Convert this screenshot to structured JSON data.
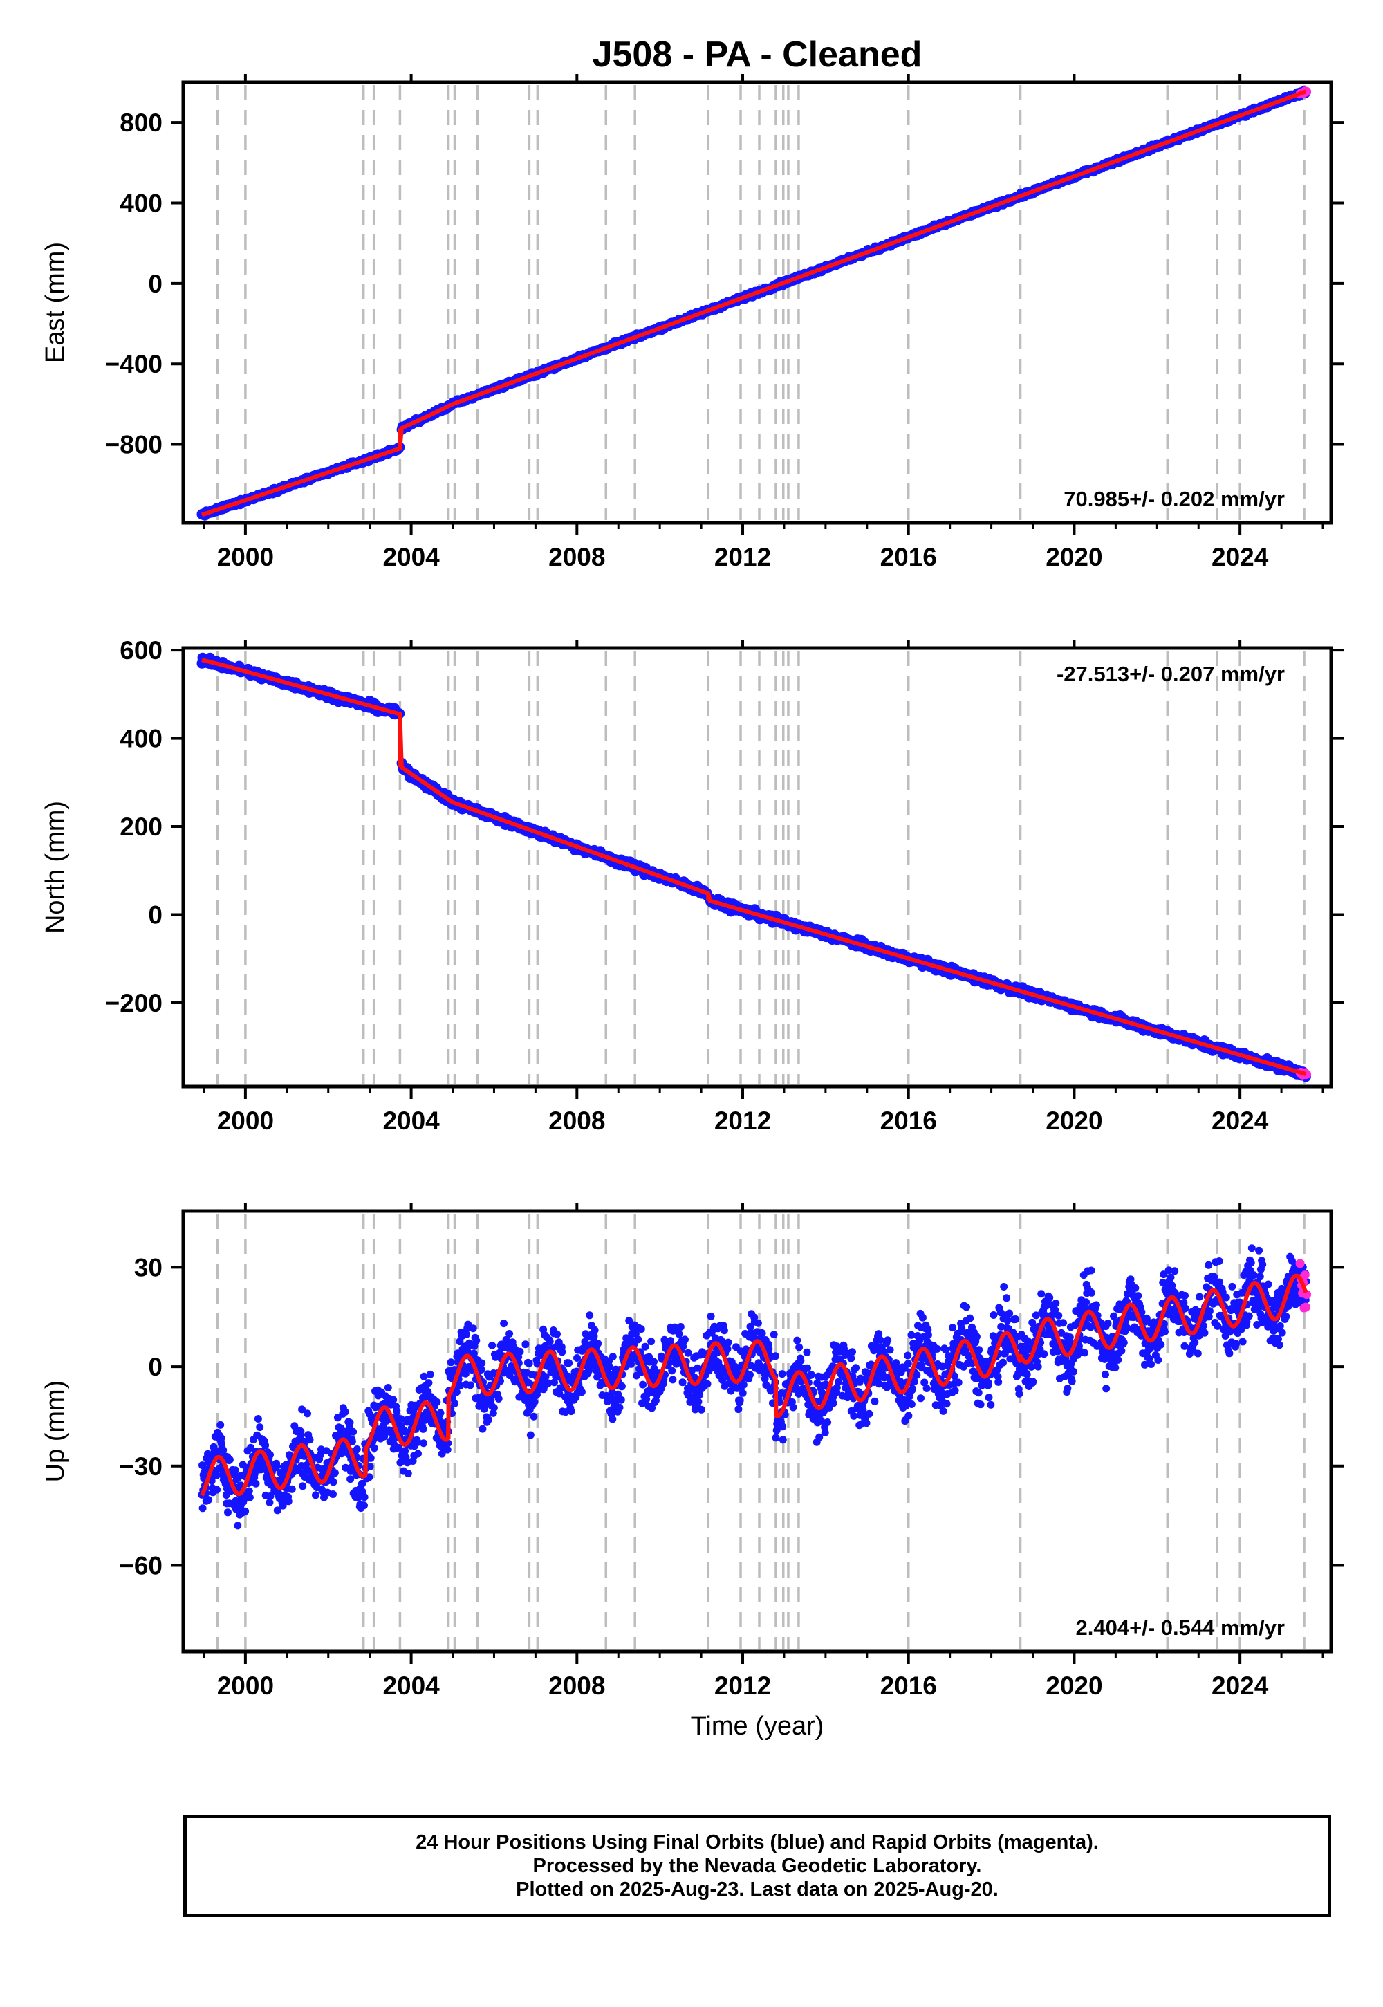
{
  "title": "J508  - PA - Cleaned",
  "colors": {
    "final_points": "#1414ff",
    "rapid_points": "#ff2ad4",
    "fit_line": "#ff1010",
    "event_lines": "#bdbdbd",
    "frame": "#000000"
  },
  "chart_data": [
    {
      "type": "scatter",
      "ylabel": "East (mm)",
      "xlabel": "",
      "xlim": [
        1998.5,
        2026.2
      ],
      "ylim": [
        -1190,
        1000
      ],
      "xticks": [
        "2000",
        "2004",
        "2008",
        "2012",
        "2016",
        "2020",
        "2024"
      ],
      "yticks": [
        "800",
        "400",
        "0",
        "-400",
        "-800"
      ],
      "ytick_values": [
        800,
        400,
        0,
        -400,
        -800
      ],
      "rate_text": "70.985+/- 0.202 mm/yr",
      "rate_position": "bottom-right",
      "grid": false,
      "series": [
        {
          "x": [
            1998.95,
            2003.73
          ],
          "y": [
            -1150,
            -820
          ]
        },
        {
          "x": [
            2003.76,
            2004.4,
            2005.0,
            2025.6
          ],
          "y": [
            -720,
            -660,
            -600,
            955
          ]
        }
      ]
    },
    {
      "type": "scatter",
      "ylabel": "North (mm)",
      "xlabel": "",
      "xlim": [
        1998.5,
        2026.2
      ],
      "ylim": [
        -390,
        605
      ],
      "xticks": [
        "2000",
        "2004",
        "2008",
        "2012",
        "2016",
        "2020",
        "2024"
      ],
      "yticks": [
        "600",
        "400",
        "200",
        "0",
        "-200"
      ],
      "ytick_values": [
        600,
        400,
        200,
        0,
        -200
      ],
      "rate_text": "-27.513+/- 0.207 mm/yr",
      "rate_position": "top-right",
      "grid": false,
      "series": [
        {
          "x": [
            1998.95,
            1999.5,
            2003.73
          ],
          "y": [
            578,
            565,
            455
          ]
        },
        {
          "x": [
            2003.76,
            2004.3,
            2005.0,
            2011.17
          ],
          "y": [
            335,
            300,
            255,
            48
          ]
        },
        {
          "x": [
            2011.19,
            2025.6
          ],
          "y": [
            32,
            -362
          ]
        }
      ]
    },
    {
      "type": "scatter",
      "ylabel": "Up (mm)",
      "xlabel": "Time (year)",
      "xlim": [
        1998.5,
        2026.2
      ],
      "ylim": [
        -86,
        47
      ],
      "xticks": [
        "2000",
        "2004",
        "2008",
        "2012",
        "2016",
        "2020",
        "2024"
      ],
      "yticks": [
        "30",
        "0",
        "-30",
        "-60"
      ],
      "ytick_values": [
        30,
        0,
        -30,
        -60
      ],
      "rate_text": "2.404+/- 0.544 mm/yr",
      "rate_position": "bottom-right",
      "grid": false,
      "seasonal_amplitude_mm": 6,
      "series": [
        {
          "x": [
            1998.95,
            2002.9
          ],
          "y": [
            -34,
            -27
          ]
        },
        {
          "x": [
            2002.9,
            2004.9
          ],
          "y": [
            -19,
            -16
          ]
        },
        {
          "x": [
            2004.9,
            2012.8
          ],
          "y": [
            -3,
            2
          ]
        },
        {
          "x": [
            2012.8,
            2018.7
          ],
          "y": [
            -9,
            5
          ]
        },
        {
          "x": [
            2018.7,
            2025.6
          ],
          "y": [
            7,
            22
          ]
        }
      ]
    }
  ],
  "event_lines_x": [
    1999.33,
    2000.0,
    2002.85,
    2003.1,
    2003.73,
    2004.9,
    2005.05,
    2005.6,
    2006.85,
    2007.05,
    2008.7,
    2009.4,
    2011.17,
    2011.95,
    2012.4,
    2012.8,
    2012.98,
    2013.1,
    2013.35,
    2016.0,
    2018.7,
    2022.25,
    2023.45,
    2024.0,
    2025.55
  ],
  "footer": {
    "line1": "24 Hour Positions Using Final Orbits (blue) and Rapid Orbits (magenta).",
    "line2": "Processed by the Nevada Geodetic Laboratory.",
    "line3": "Plotted on 2025-Aug-23. Last data on 2025-Aug-20."
  }
}
